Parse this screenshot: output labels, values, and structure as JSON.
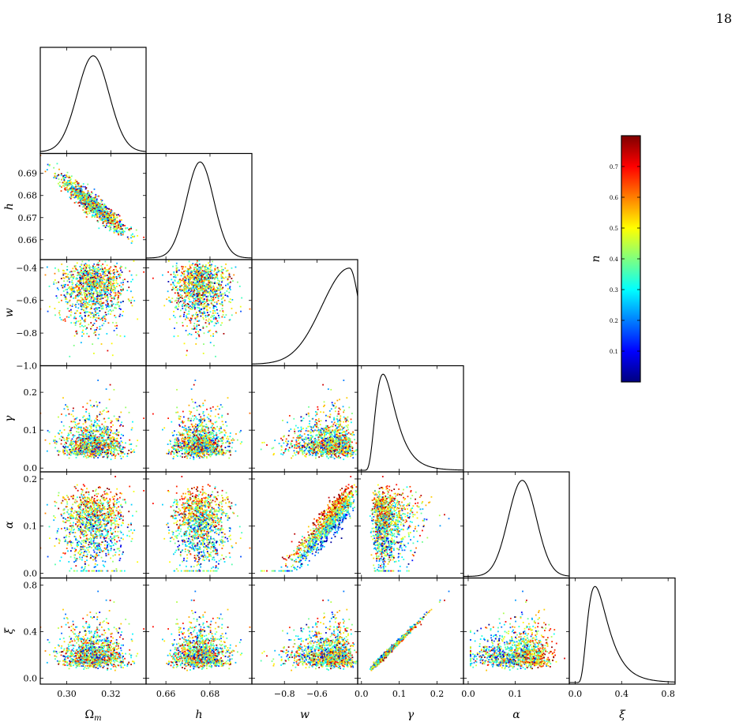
{
  "page": {
    "number": "18"
  },
  "chart_data": {
    "type": "scatter",
    "kind": "corner plot (triangle plot) with 1D marginal posteriors on the diagonal and 2D sample scatters colored by n",
    "parameters": [
      {
        "key": "omega_m",
        "label": "Ωm",
        "base": "Ω",
        "sub": "m",
        "range": [
          0.288,
          0.336
        ],
        "ticks": [
          0.3,
          0.32
        ],
        "tick_labels": [
          "0.30",
          "0.32"
        ],
        "mean": 0.312,
        "sd": 0.0072
      },
      {
        "key": "h",
        "label": "h",
        "range": [
          0.651,
          0.699
        ],
        "ticks": [
          0.66,
          0.67,
          0.68,
          0.69
        ],
        "tick_labels": [
          "0.66",
          "0.67",
          "0.68",
          "0.69"
        ],
        "xticks": [
          0.66,
          0.68
        ],
        "xtick_labels": [
          "0.66",
          "0.68"
        ],
        "mean": 0.6755,
        "sd": 0.0062
      },
      {
        "key": "w",
        "label": "w",
        "range": [
          -1.0,
          -0.35
        ],
        "ticks": [
          -1.0,
          -0.8,
          -0.6,
          -0.4
        ],
        "tick_labels": [
          "−1.0",
          "−0.8",
          "−0.6",
          "−0.4"
        ],
        "xticks": [
          -0.8,
          -0.6
        ],
        "xtick_labels": [
          "−0.8",
          "−0.6"
        ],
        "mode": -0.4,
        "reference_line": -1.0
      },
      {
        "key": "gamma",
        "label": "γ",
        "range": [
          -0.01,
          0.27
        ],
        "ticks": [
          0.0,
          0.1,
          0.2
        ],
        "tick_labels": [
          "0.0",
          "0.1",
          "0.2"
        ],
        "mode": 0.05
      },
      {
        "key": "alpha",
        "label": "α",
        "range": [
          -0.01,
          0.215
        ],
        "ticks": [
          0.0,
          0.1,
          0.2
        ],
        "tick_labels": [
          "0.0",
          "0.1",
          "0.2"
        ],
        "xticks": [
          0.0,
          0.1
        ],
        "xtick_labels": [
          "0.0",
          "0.1"
        ],
        "mean": 0.115,
        "sd": 0.03
      },
      {
        "key": "xi",
        "label": "ξ",
        "range": [
          -0.05,
          0.86
        ],
        "ticks": [
          0.0,
          0.4,
          0.8
        ],
        "tick_labels": [
          "0.0",
          "0.4",
          "0.8"
        ],
        "mode": 0.15
      }
    ],
    "color_parameter": {
      "label": "n",
      "range": [
        0.0,
        0.8
      ],
      "ticks": [
        0.1,
        0.2,
        0.3,
        0.4,
        0.5,
        0.6,
        0.7
      ],
      "tick_labels": [
        "0.1",
        "0.2",
        "0.3",
        "0.4",
        "0.5",
        "0.6",
        "0.7"
      ],
      "colormap": [
        "#00007f",
        "#0000ff",
        "#007fff",
        "#00ffff",
        "#7fff7f",
        "#ffff00",
        "#ff7f00",
        "#ff0000",
        "#7f0000"
      ]
    },
    "samples_per_panel": 1200,
    "grid": false,
    "legend": "colorbar right"
  }
}
